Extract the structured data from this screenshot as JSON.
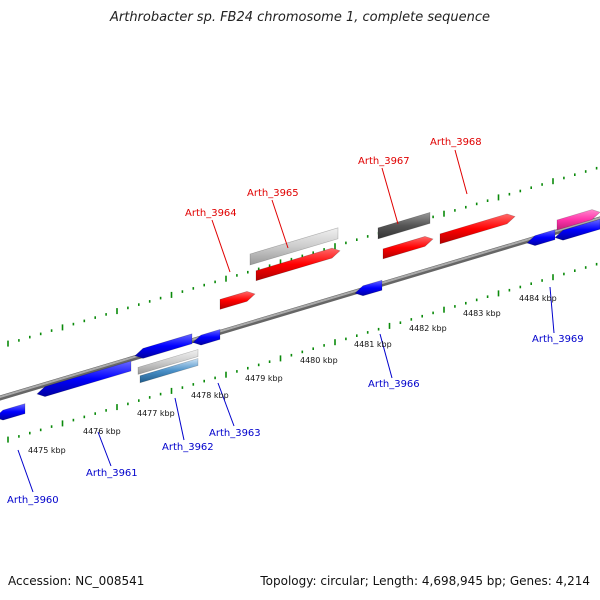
{
  "title": "Arthrobacter sp. FB24 chromosome 1, complete sequence",
  "footer": {
    "accession": "Accession: NC_008541",
    "summary": "Topology: circular; Length: 4,698,945 bp; Genes: 4,214"
  },
  "scale_labels": [
    "4475 kbp",
    "4476 kbp",
    "4477 kbp",
    "4478 kbp",
    "4479 kbp",
    "4480 kbp",
    "4481 kbp",
    "4482 kbp",
    "4483 kbp",
    "4484 kbp"
  ],
  "genes_top": [
    {
      "name": "Arth_3964"
    },
    {
      "name": "Arth_3965"
    },
    {
      "name": "Arth_3967"
    },
    {
      "name": "Arth_3968"
    }
  ],
  "genes_bottom": [
    {
      "name": "Arth_3960"
    },
    {
      "name": "Arth_3961"
    },
    {
      "name": "Arth_3962"
    },
    {
      "name": "Arth_3963"
    },
    {
      "name": "Arth_3966"
    },
    {
      "name": "Arth_3969"
    }
  ],
  "colors": {
    "forward": "#ff0000",
    "reverse": "#0000ff",
    "tick": "#008000",
    "backbone": "#808080",
    "top_label": "#e00000",
    "bottom_label": "#0000cc",
    "pseudo_light": "#cccccc",
    "pseudo_dark": "#555555",
    "magenta": "#ff33aa",
    "steel": "#4a90c8"
  }
}
